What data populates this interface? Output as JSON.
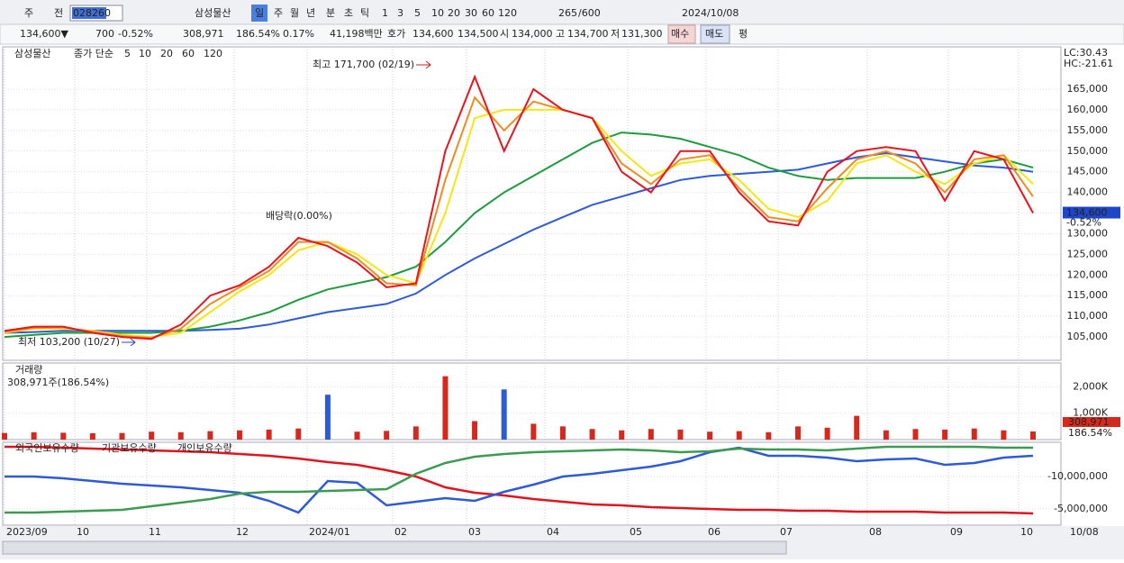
{
  "toolbar": {
    "market": "주",
    "range": "전",
    "code": "028260",
    "name": "삼성물산",
    "periods": [
      "일",
      "주",
      "월",
      "년",
      "분",
      "초",
      "틱"
    ],
    "intervals": [
      "1",
      "3",
      "5",
      "10",
      "20",
      "30",
      "60",
      "120"
    ],
    "count": "265",
    "count_max": "/600",
    "date": "2024/10/08"
  },
  "info_bar": {
    "price": "134,600▼",
    "change": "700",
    "change_pct": "-0.52%",
    "volume": "308,971",
    "volume_ratio": "186.54%",
    "turnover": "0.17%",
    "amount": "41,198백만",
    "bid_label": "호가",
    "ask": "134,600",
    "bid": "134,500",
    "open_label": "시",
    "open": "134,000",
    "high_label": "고",
    "high": "134,700",
    "low_label": "저",
    "low": "131,300",
    "buy": "매수",
    "sell": "매도",
    "avg": "평"
  },
  "x_axis": {
    "labels": [
      "2023/09",
      "10",
      "11",
      "12",
      "2024/01",
      "02",
      "03",
      "04",
      "05",
      "06",
      "07",
      "08",
      "09",
      "10"
    ],
    "last": "10/08"
  },
  "chart_data": [
    {
      "type": "line",
      "legend_name": "삼성물산",
      "legend_title": "종가 단순",
      "lc": "LC:30.43",
      "hc": "HC:-21.61",
      "last_price": "134,600",
      "last_change": "-0.52%",
      "annotations": [
        "최고 171,700 (02/19)",
        "최저 103,200 (10/27)",
        "배당락(0.00%)"
      ],
      "ylim": [
        99340,
        175250
      ],
      "yticks": [
        {
          "value": 105000,
          "label": "105,000"
        },
        {
          "value": 110000,
          "label": "110,000"
        },
        {
          "value": 115000,
          "label": "115,000"
        },
        {
          "value": 120000,
          "label": "120,000"
        },
        {
          "value": 125000,
          "label": "125,000"
        },
        {
          "value": 130000,
          "label": "130,000"
        },
        {
          "value": 135000,
          "label": "135,000"
        },
        {
          "value": 140000,
          "label": "140,000"
        },
        {
          "value": 145000,
          "label": "145,000"
        },
        {
          "value": 150000,
          "label": "150,000"
        },
        {
          "value": 155000,
          "label": "155,000"
        },
        {
          "value": 160000,
          "label": "160,000"
        },
        {
          "value": 165000,
          "label": "165,000"
        }
      ],
      "series": [
        {
          "name": "5",
          "color": "#e8141e",
          "values": [
            106500,
            107500,
            107500,
            106000,
            105000,
            104500,
            108000,
            115000,
            117500,
            122000,
            129000,
            127000,
            123000,
            117000,
            118000,
            150000,
            168000,
            150000,
            165000,
            160000,
            158000,
            145000,
            140000,
            150000,
            150000,
            140000,
            133000,
            132000,
            145000,
            150000,
            151000,
            150000,
            138000,
            150000,
            148000,
            135000
          ]
        },
        {
          "name": "10",
          "color": "#f08c1e",
          "values": [
            106200,
            107200,
            107300,
            106300,
            105200,
            104800,
            107000,
            113000,
            117000,
            121000,
            128000,
            128000,
            124000,
            118000,
            117500,
            143000,
            163000,
            155000,
            162000,
            160000,
            158000,
            147000,
            142000,
            148000,
            149000,
            141000,
            134000,
            133000,
            141000,
            148000,
            150000,
            147000,
            140000,
            148000,
            149000,
            139000
          ]
        },
        {
          "name": "20",
          "color": "#f5e614",
          "values": [
            106000,
            107000,
            107000,
            106500,
            105500,
            105000,
            106000,
            111000,
            116000,
            120000,
            126000,
            128000,
            125000,
            120000,
            118000,
            135000,
            158000,
            160000,
            160000,
            160000,
            158000,
            150000,
            144000,
            147000,
            148000,
            143000,
            136000,
            134000,
            138000,
            147000,
            149000,
            145000,
            142000,
            147000,
            149000,
            142000
          ]
        },
        {
          "name": "60",
          "color": "#1e9b3c",
          "values": [
            105000,
            105500,
            106000,
            106000,
            106000,
            106000,
            106500,
            107500,
            109000,
            111000,
            114000,
            116500,
            118000,
            119500,
            122000,
            128000,
            135000,
            140000,
            144000,
            148000,
            152000,
            154500,
            154000,
            153000,
            151000,
            149000,
            146000,
            144000,
            143000,
            143500,
            143500,
            143500,
            145000,
            147000,
            148000,
            146000
          ]
        },
        {
          "name": "120",
          "color": "#2d5ad7",
          "values": [
            106000,
            106200,
            106500,
            106500,
            106500,
            106500,
            106500,
            106700,
            107000,
            108000,
            109500,
            111000,
            112000,
            113000,
            115500,
            120000,
            124000,
            127500,
            131000,
            134000,
            137000,
            139000,
            141000,
            143000,
            144000,
            144500,
            145000,
            145500,
            147000,
            148500,
            149500,
            148500,
            147500,
            146500,
            146000,
            145000
          ]
        }
      ]
    },
    {
      "type": "bar",
      "title": "거래량",
      "subtitle": "308,971주(186.54%)",
      "last_value": "308,971",
      "last_ratio": "186.54%",
      "color": "#d7281e",
      "ylim": [
        0,
        2900
      ],
      "yticks": [
        {
          "value": 1000,
          "label": "1,000K"
        },
        {
          "value": 2000,
          "label": "2,000K"
        }
      ],
      "values": [
        250,
        280,
        260,
        240,
        250,
        300,
        280,
        320,
        350,
        380,
        420,
        1700,
        300,
        330,
        500,
        2400,
        700,
        1900,
        600,
        500,
        400,
        350,
        400,
        380,
        300,
        320,
        280,
        500,
        450,
        900,
        350,
        400,
        380,
        420,
        350,
        309
      ]
    },
    {
      "type": "line",
      "ylim": [
        -2500000,
        -15280000
      ],
      "yticks": [
        {
          "value": -5000000,
          "label": "-5,000,000"
        },
        {
          "value": -10000000,
          "label": "-10,000,000"
        }
      ],
      "series": [
        {
          "name": "외국인보유수량",
          "color": "#e1141e",
          "values": [
            -14580000,
            -14580000,
            -14440000,
            -14310000,
            -14170000,
            -14030000,
            -13890000,
            -13750000,
            -13470000,
            -13190000,
            -12780000,
            -12220000,
            -11810000,
            -10970000,
            -10000000,
            -8330000,
            -7500000,
            -7080000,
            -6530000,
            -6110000,
            -5690000,
            -5560000,
            -5280000,
            -5140000,
            -5000000,
            -4860000,
            -4860000,
            -4720000,
            -4720000,
            -4580000,
            -4580000,
            -4580000,
            -4440000,
            -4440000,
            -4440000,
            -4310000
          ]
        },
        {
          "name": "기관보유수량",
          "color": "#2d5ad7",
          "values": [
            -10000000,
            -10000000,
            -9720000,
            -9310000,
            -8890000,
            -8610000,
            -8330000,
            -7920000,
            -7500000,
            -6250000,
            -4440000,
            -9310000,
            -9030000,
            -5560000,
            -6110000,
            -6670000,
            -6250000,
            -7640000,
            -8750000,
            -10000000,
            -10420000,
            -10970000,
            -11530000,
            -12360000,
            -13750000,
            -14440000,
            -13190000,
            -13190000,
            -12920000,
            -12360000,
            -12640000,
            -12780000,
            -11810000,
            -12080000,
            -12920000,
            -13190000
          ]
        },
        {
          "name": "개인보유수량",
          "color": "#3c9b50",
          "values": [
            -4440000,
            -4440000,
            -4580000,
            -4720000,
            -4860000,
            -5420000,
            -5970000,
            -6530000,
            -7360000,
            -7640000,
            -7640000,
            -7780000,
            -7920000,
            -8060000,
            -10420000,
            -12080000,
            -13060000,
            -13470000,
            -13750000,
            -13890000,
            -14030000,
            -14170000,
            -14030000,
            -13750000,
            -13890000,
            -14310000,
            -14170000,
            -14170000,
            -14030000,
            -14310000,
            -14580000,
            -14580000,
            -14580000,
            -14580000,
            -14440000,
            -14440000
          ]
        }
      ]
    }
  ]
}
